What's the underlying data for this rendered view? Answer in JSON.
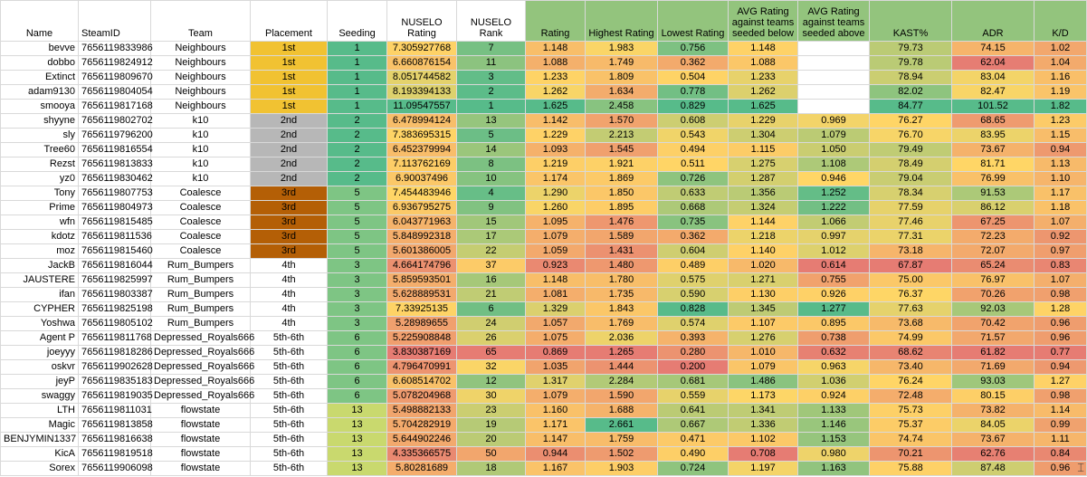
{
  "columns": [
    "Name",
    "SteamID",
    "Team",
    "Placement",
    "Seeding",
    "NUSELO Rating",
    "NUSELO Rank",
    "Rating",
    "Highest Rating",
    "Lowest Rating",
    "AVG Rating against teams seeded below",
    "AVG Rating against teams seeded above",
    "KAST%",
    "ADR",
    "K/D"
  ],
  "rows": [
    [
      "bevve",
      "7656119833986",
      "Neighbours",
      "1st",
      "1",
      "7.305927768",
      "7",
      "1.148",
      "1.983",
      "0.756",
      "1.148",
      "",
      "79.73",
      "74.15",
      "1.02"
    ],
    [
      "dobbo",
      "7656119824912",
      "Neighbours",
      "1st",
      "1",
      "6.660876154",
      "11",
      "1.088",
      "1.749",
      "0.362",
      "1.088",
      "",
      "79.78",
      "62.04",
      "1.04"
    ],
    [
      "Extinct",
      "7656119809670",
      "Neighbours",
      "1st",
      "1",
      "8.051744582",
      "3",
      "1.233",
      "1.809",
      "0.504",
      "1.233",
      "",
      "78.94",
      "83.04",
      "1.16"
    ],
    [
      "adam9130",
      "7656119804054",
      "Neighbours",
      "1st",
      "1",
      "8.193394133",
      "2",
      "1.262",
      "1.634",
      "0.778",
      "1.262",
      "",
      "82.02",
      "82.47",
      "1.19"
    ],
    [
      "smooya",
      "7656119817168",
      "Neighbours",
      "1st",
      "1",
      "11.09547557",
      "1",
      "1.625",
      "2.458",
      "0.829",
      "1.625",
      "",
      "84.77",
      "101.52",
      "1.82"
    ],
    [
      "shyyne",
      "7656119802702",
      "k10",
      "2nd",
      "2",
      "6.478994124",
      "13",
      "1.142",
      "1.570",
      "0.608",
      "1.229",
      "0.969",
      "76.27",
      "68.65",
      "1.23"
    ],
    [
      "sly",
      "7656119796200",
      "k10",
      "2nd",
      "2",
      "7.383695315",
      "5",
      "1.229",
      "2.213",
      "0.543",
      "1.304",
      "1.079",
      "76.70",
      "83.95",
      "1.15"
    ],
    [
      "Tree60",
      "7656119816554",
      "k10",
      "2nd",
      "2",
      "6.452379994",
      "14",
      "1.093",
      "1.545",
      "0.494",
      "1.115",
      "1.050",
      "79.49",
      "73.67",
      "0.94"
    ],
    [
      "Rezst",
      "7656119813833",
      "k10",
      "2nd",
      "2",
      "7.113762169",
      "8",
      "1.219",
      "1.921",
      "0.511",
      "1.275",
      "1.108",
      "78.49",
      "81.71",
      "1.13"
    ],
    [
      "yz0",
      "7656119830462",
      "k10",
      "2nd",
      "2",
      "6.90037496",
      "10",
      "1.174",
      "1.869",
      "0.726",
      "1.287",
      "0.946",
      "79.04",
      "76.99",
      "1.10"
    ],
    [
      "Tony",
      "7656119807753",
      "Coalesce",
      "3rd",
      "5",
      "7.454483946",
      "4",
      "1.290",
      "1.850",
      "0.633",
      "1.356",
      "1.252",
      "78.34",
      "91.53",
      "1.17"
    ],
    [
      "Prime",
      "7656119804973",
      "Coalesce",
      "3rd",
      "5",
      "6.936795275",
      "9",
      "1.260",
      "1.895",
      "0.668",
      "1.324",
      "1.222",
      "77.59",
      "86.12",
      "1.18"
    ],
    [
      "wfn",
      "7656119815485",
      "Coalesce",
      "3rd",
      "5",
      "6.043771963",
      "15",
      "1.095",
      "1.476",
      "0.735",
      "1.144",
      "1.066",
      "77.46",
      "67.25",
      "1.07"
    ],
    [
      "kdotz",
      "7656119811536",
      "Coalesce",
      "3rd",
      "5",
      "5.848992318",
      "17",
      "1.079",
      "1.589",
      "0.362",
      "1.218",
      "0.997",
      "77.31",
      "72.23",
      "0.92"
    ],
    [
      "moz",
      "7656119815460",
      "Coalesce",
      "3rd",
      "5",
      "5.601386005",
      "22",
      "1.059",
      "1.431",
      "0.604",
      "1.140",
      "1.012",
      "73.18",
      "72.07",
      "0.97"
    ],
    [
      "JackB",
      "7656119816044",
      "Rum_Bumpers",
      "4th",
      "3",
      "4.664174796",
      "37",
      "0.923",
      "1.480",
      "0.489",
      "1.020",
      "0.614",
      "67.87",
      "65.24",
      "0.83"
    ],
    [
      "JAUSTERE",
      "7656119825997",
      "Rum_Bumpers",
      "4th",
      "3",
      "5.859593501",
      "16",
      "1.148",
      "1.780",
      "0.575",
      "1.271",
      "0.755",
      "75.00",
      "76.97",
      "1.07"
    ],
    [
      "ifan",
      "7656119803387",
      "Rum_Bumpers",
      "4th",
      "3",
      "5.628889531",
      "21",
      "1.081",
      "1.735",
      "0.590",
      "1.130",
      "0.926",
      "76.37",
      "70.26",
      "0.98"
    ],
    [
      "CYPHER",
      "7656119825198",
      "Rum_Bumpers",
      "4th",
      "3",
      "7.33925135",
      "6",
      "1.329",
      "1.843",
      "0.828",
      "1.345",
      "1.277",
      "77.63",
      "92.03",
      "1.28"
    ],
    [
      "Yoshwa",
      "7656119805102",
      "Rum_Bumpers",
      "4th",
      "3",
      "5.28989655",
      "24",
      "1.057",
      "1.769",
      "0.574",
      "1.107",
      "0.895",
      "73.68",
      "70.42",
      "0.96"
    ],
    [
      "Agent P",
      "7656119811768",
      "Depressed_Royals666",
      "5th-6th",
      "6",
      "5.225908848",
      "26",
      "1.075",
      "2.036",
      "0.393",
      "1.276",
      "0.738",
      "74.99",
      "71.57",
      "0.96"
    ],
    [
      "joeyyy",
      "7656119818286",
      "Depressed_Royals666",
      "5th-6th",
      "6",
      "3.830387169",
      "65",
      "0.869",
      "1.265",
      "0.280",
      "1.010",
      "0.632",
      "68.62",
      "61.82",
      "0.77"
    ],
    [
      "oskvr",
      "7656119902628",
      "Depressed_Royals666",
      "5th-6th",
      "6",
      "4.796470991",
      "32",
      "1.035",
      "1.444",
      "0.200",
      "1.079",
      "0.963",
      "73.40",
      "71.69",
      "0.94"
    ],
    [
      "jeyP",
      "7656119835183",
      "Depressed_Royals666",
      "5th-6th",
      "6",
      "6.608514702",
      "12",
      "1.317",
      "2.284",
      "0.681",
      "1.486",
      "1.036",
      "76.24",
      "93.03",
      "1.27"
    ],
    [
      "swaggy",
      "7656119819035",
      "Depressed_Royals666",
      "5th-6th",
      "6",
      "5.078204968",
      "30",
      "1.079",
      "1.590",
      "0.559",
      "1.173",
      "0.924",
      "72.48",
      "80.15",
      "0.98"
    ],
    [
      "LTH",
      "7656119811031",
      "flowstate",
      "5th-6th",
      "13",
      "5.498882133",
      "23",
      "1.160",
      "1.688",
      "0.641",
      "1.341",
      "1.133",
      "75.73",
      "73.82",
      "1.14"
    ],
    [
      "Magic",
      "7656119813858",
      "flowstate",
      "5th-6th",
      "13",
      "5.704282919",
      "19",
      "1.171",
      "2.661",
      "0.667",
      "1.336",
      "1.146",
      "75.37",
      "84.05",
      "0.99"
    ],
    [
      "BENJYMIN1337",
      "7656119816638",
      "flowstate",
      "5th-6th",
      "13",
      "5.644902246",
      "20",
      "1.147",
      "1.759",
      "0.471",
      "1.102",
      "1.153",
      "74.74",
      "73.67",
      "1.11"
    ],
    [
      "KicA",
      "7656119819518",
      "flowstate",
      "5th-6th",
      "13",
      "4.335366575",
      "50",
      "0.944",
      "1.502",
      "0.490",
      "0.708",
      "0.980",
      "70.21",
      "62.76",
      "0.84"
    ],
    [
      "Sorex",
      "7656119906098",
      "flowstate",
      "5th-6th",
      "13",
      "5.80281689",
      "18",
      "1.167",
      "1.903",
      "0.724",
      "1.197",
      "1.163",
      "75.88",
      "87.48",
      "0.96"
    ]
  ],
  "placement_colors": {
    "1st": "#f1c232",
    "2nd": "#b7b7b7",
    "3rd": "#b45f06",
    "4th": "#ffffff",
    "5th-6th": "#ffffff"
  },
  "cursor_icon": "pointer-cursor-icon"
}
